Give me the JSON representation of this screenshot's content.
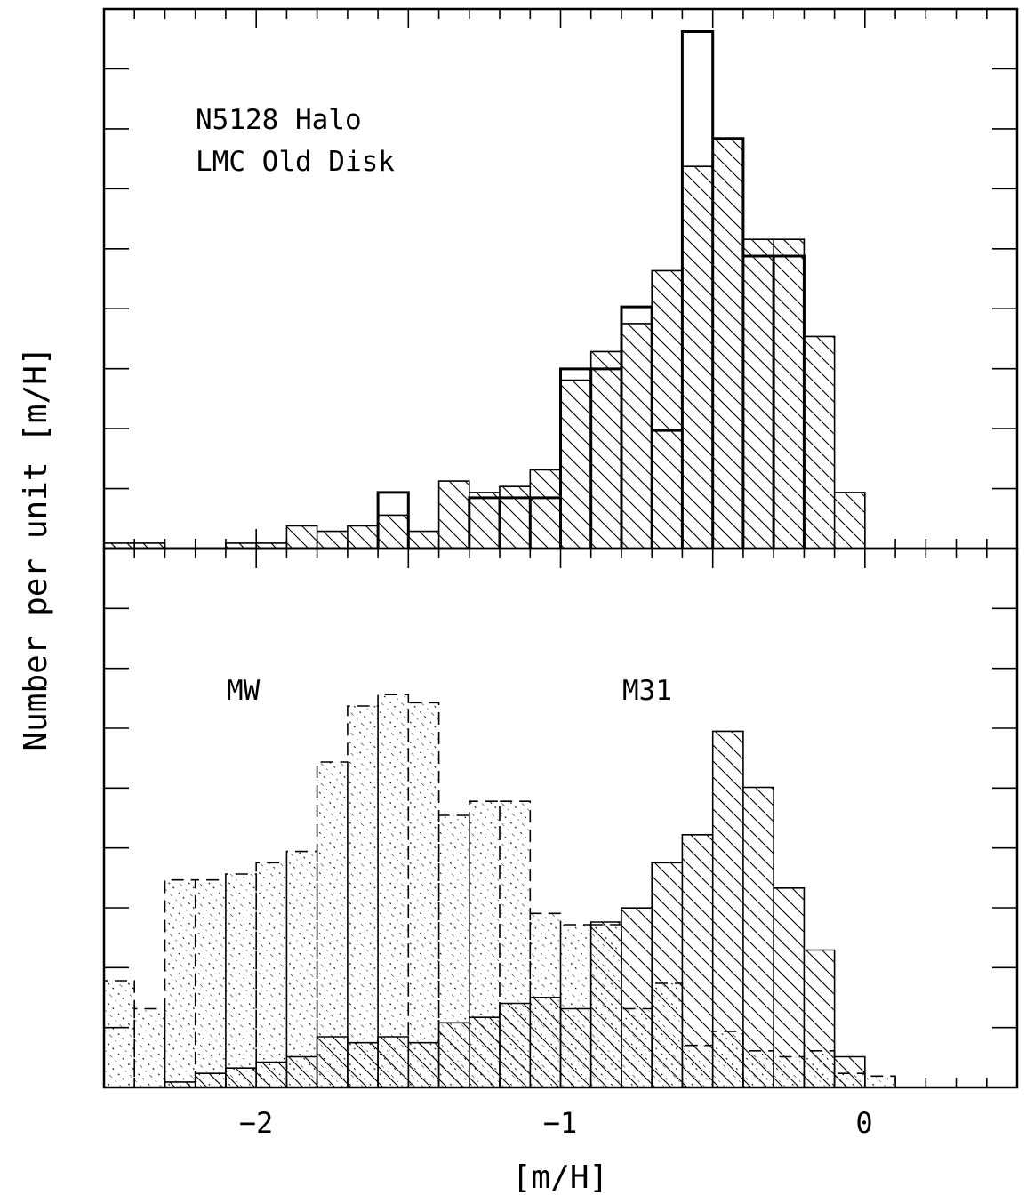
{
  "chart_data": [
    {
      "panel": "top",
      "type": "histogram",
      "annotation_lines": [
        "N5128 Halo",
        "LMC Old Disk"
      ],
      "ylabel": "Number per unit [m/H]",
      "xlim": [
        -2.5,
        0.5
      ],
      "ylim": [
        0,
        1
      ],
      "bin_width": 0.1,
      "y_tick_labels": "none",
      "grid": false,
      "series": [
        {
          "style": "hatched-diagonal",
          "bins_start": [
            -2.5,
            -2.4,
            -2.3,
            -2.2,
            -2.1,
            -2.0,
            -1.9,
            -1.8,
            -1.7,
            -1.6,
            -1.5,
            -1.4,
            -1.3,
            -1.2,
            -1.1,
            -1.0,
            -0.9,
            -0.8,
            -0.7,
            -0.6,
            -0.5,
            -0.4,
            -0.3,
            -0.2,
            -0.1
          ],
          "values": [
            0.01,
            0.01,
            0.0,
            0.0,
            0.01,
            0.01,
            0.042,
            0.032,
            0.042,
            0.062,
            0.032,
            0.125,
            0.104,
            0.115,
            0.146,
            0.312,
            0.365,
            0.417,
            0.515,
            0.708,
            0.76,
            0.573,
            0.573,
            0.393,
            0.104
          ]
        },
        {
          "style": "solid-outline",
          "bins_start": [
            -2.5,
            -2.4,
            -2.3,
            -2.2,
            -2.1,
            -2.0,
            -1.9,
            -1.8,
            -1.7,
            -1.6,
            -1.5,
            -1.4,
            -1.3,
            -1.2,
            -1.1,
            -1.0,
            -0.9,
            -0.8,
            -0.7,
            -0.6,
            -0.5,
            -0.4,
            -0.3
          ],
          "values": [
            0.0,
            0.0,
            0.0,
            0.0,
            0.0,
            0.0,
            0.0,
            0.0,
            0.0,
            0.104,
            0.0,
            0.0,
            0.094,
            0.094,
            0.094,
            0.333,
            0.333,
            0.448,
            0.219,
            0.958,
            0.76,
            0.542,
            0.542
          ]
        }
      ]
    },
    {
      "panel": "bottom",
      "type": "histogram",
      "annotations": [
        "MW",
        "M31"
      ],
      "xlabel": "[m/H]",
      "ylabel": "Number per unit [m/H]",
      "xlim": [
        -2.5,
        0.5
      ],
      "ylim": [
        0,
        1
      ],
      "bin_width": 0.1,
      "x_ticks": [
        -2,
        -1,
        0
      ],
      "x_tick_labels": [
        "−2",
        "−1",
        "0"
      ],
      "y_tick_labels": "none",
      "grid": false,
      "series": [
        {
          "label": "MW",
          "style": "dashed-outline-dotted-hatch",
          "bins_start": [
            -2.5,
            -2.4,
            -2.3,
            -2.2,
            -2.1,
            -2.0,
            -1.9,
            -1.8,
            -1.7,
            -1.6,
            -1.5,
            -1.4,
            -1.3,
            -1.2,
            -1.1,
            -1.0,
            -0.9,
            -0.8,
            -0.7,
            -0.6,
            -0.5,
            -0.4,
            -0.3,
            -0.2,
            -0.1,
            0.0
          ],
          "values": [
            0.198,
            0.146,
            0.385,
            0.385,
            0.396,
            0.417,
            0.438,
            0.604,
            0.708,
            0.729,
            0.714,
            0.505,
            0.531,
            0.531,
            0.323,
            0.302,
            0.302,
            0.146,
            0.193,
            0.078,
            0.104,
            0.068,
            0.057,
            0.068,
            0.026,
            0.021
          ]
        },
        {
          "label": "M31",
          "style": "hatched-diagonal-solid-outline",
          "bins_start": [
            -2.3,
            -2.2,
            -2.1,
            -2.0,
            -1.9,
            -1.8,
            -1.7,
            -1.6,
            -1.5,
            -1.4,
            -1.3,
            -1.2,
            -1.1,
            -1.0,
            -0.9,
            -0.8,
            -0.7,
            -0.6,
            -0.5,
            -0.4,
            -0.3,
            -0.2,
            -0.1
          ],
          "values": [
            0.01,
            0.026,
            0.036,
            0.047,
            0.057,
            0.094,
            0.083,
            0.094,
            0.083,
            0.12,
            0.13,
            0.156,
            0.167,
            0.146,
            0.307,
            0.333,
            0.417,
            0.469,
            0.661,
            0.557,
            0.37,
            0.255,
            0.057
          ]
        }
      ]
    }
  ]
}
